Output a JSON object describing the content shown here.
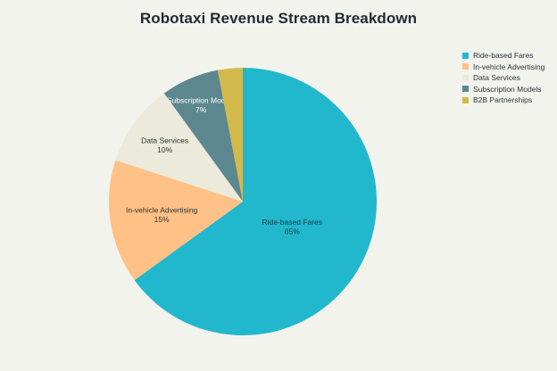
{
  "colors": {
    "background": "#f3f3ee",
    "title": "#1f2a30"
  },
  "chart_data": {
    "type": "pie",
    "title": "Robotaxi Revenue Stream Breakdown",
    "legend_position": "top-right",
    "categories": [
      "Ride-based Fares",
      "In-vehicle Advertising",
      "Data Services",
      "Subscription Models",
      "B2B Partnerships"
    ],
    "values": [
      65,
      15,
      10,
      7,
      3
    ],
    "slice_labels": [
      "65%",
      "15%",
      "10%",
      "7%",
      ""
    ],
    "colors": [
      "#21b8ce",
      "#ffc185",
      "#eceadb",
      "#5d878f",
      "#d2ba4c"
    ],
    "label_colors": [
      "#1f3a40",
      "#2a3338",
      "#2a3338",
      "#ffffff",
      "#2a3338"
    ]
  }
}
